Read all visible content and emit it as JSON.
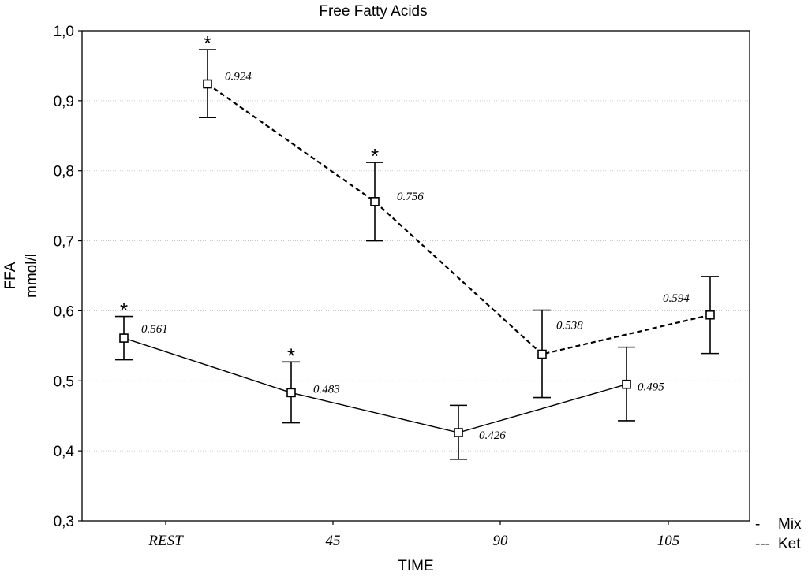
{
  "chart_data": {
    "type": "line",
    "title": "Free Fatty Acids",
    "xlabel": "TIME",
    "ylabel": [
      "FFA",
      "mmol/l"
    ],
    "categories": [
      "REST",
      "45",
      "90",
      "105"
    ],
    "ylim": [
      0.3,
      1.0
    ],
    "yticks": [
      1.0,
      0.9,
      0.8,
      0.7,
      0.6,
      0.5,
      0.4,
      0.3
    ],
    "ytick_labels": [
      "1,0",
      "0,9",
      "0,8",
      "0,7",
      "0,6",
      "0,5",
      "0,4",
      "0,3"
    ],
    "grid": true,
    "series": [
      {
        "name": "Mix",
        "style": "solid",
        "values": [
          0.561,
          0.483,
          0.426,
          0.495
        ],
        "labels": [
          "0.561",
          "0.483",
          "0.426",
          "0.495"
        ],
        "err_low": [
          0.53,
          0.44,
          0.388,
          0.443
        ],
        "err_high": [
          0.592,
          0.527,
          0.465,
          0.548
        ],
        "significant": [
          true,
          true,
          false,
          false
        ]
      },
      {
        "name": "Ket",
        "style": "dashed",
        "values": [
          0.924,
          0.756,
          0.538,
          0.594
        ],
        "labels": [
          "0.924",
          "0.756",
          "0.538",
          "0.594"
        ],
        "err_low": [
          0.876,
          0.7,
          0.476,
          0.539
        ],
        "err_high": [
          0.973,
          0.812,
          0.601,
          0.649
        ],
        "significant": [
          true,
          true,
          false,
          false
        ]
      }
    ],
    "significance_marker": "*",
    "legend": [
      {
        "symbol": "-",
        "label": "Mix"
      },
      {
        "symbol": "---",
        "label": "Ket"
      }
    ],
    "legend_position": "bottom-right"
  }
}
